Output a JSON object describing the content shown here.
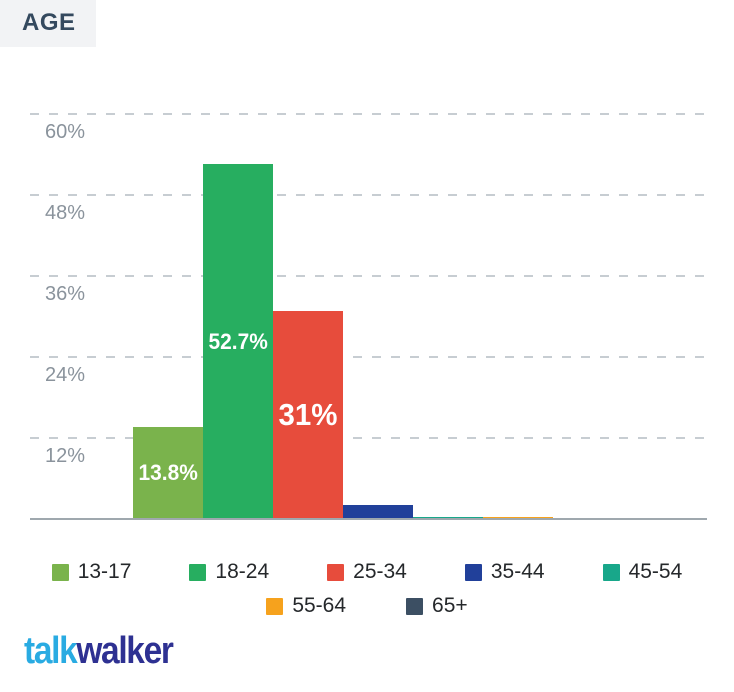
{
  "header": {
    "title": "AGE"
  },
  "chart_data": {
    "type": "bar",
    "title": "AGE",
    "categories": [
      "13-17",
      "18-24",
      "25-34",
      "35-44",
      "45-54",
      "55-64",
      "65+"
    ],
    "values": [
      13.8,
      52.7,
      31,
      2.2,
      0.4,
      0.4,
      0.3
    ],
    "data_labels": [
      "13.8%",
      "52.7%",
      "31%",
      "",
      "",
      "",
      ""
    ],
    "data_label_font_sizes": [
      22,
      22,
      31,
      0,
      0,
      0,
      0
    ],
    "colors": [
      "#7AB34C",
      "#27AE60",
      "#E74C3C",
      "#21409A",
      "#18A78A",
      "#F6A21D",
      "#3C4F63"
    ],
    "xlabel": "",
    "ylabel": "",
    "ylim": [
      0,
      66.7
    ],
    "yticks": [
      {
        "value": 60,
        "label": "60%"
      },
      {
        "value": 48,
        "label": "48%"
      },
      {
        "value": 36,
        "label": "36%"
      },
      {
        "value": 24,
        "label": "24%"
      },
      {
        "value": 12,
        "label": "12%"
      }
    ],
    "grid": "horizontal-dashed",
    "legend_position": "bottom"
  },
  "legend": {
    "rows": [
      [
        {
          "label": "13-17",
          "color": "#7AB34C"
        },
        {
          "label": "18-24",
          "color": "#27AE60"
        },
        {
          "label": "25-34",
          "color": "#E74C3C"
        },
        {
          "label": "35-44",
          "color": "#21409A"
        },
        {
          "label": "45-54",
          "color": "#18A78A"
        }
      ],
      [
        {
          "label": "55-64",
          "color": "#F6A21D"
        },
        {
          "label": "65+",
          "color": "#3C4F63"
        }
      ]
    ]
  },
  "footer": {
    "logo_part1": "talk",
    "logo_part2": "walker",
    "logo_color1": "#29ABE2",
    "logo_color2": "#2E3192"
  }
}
